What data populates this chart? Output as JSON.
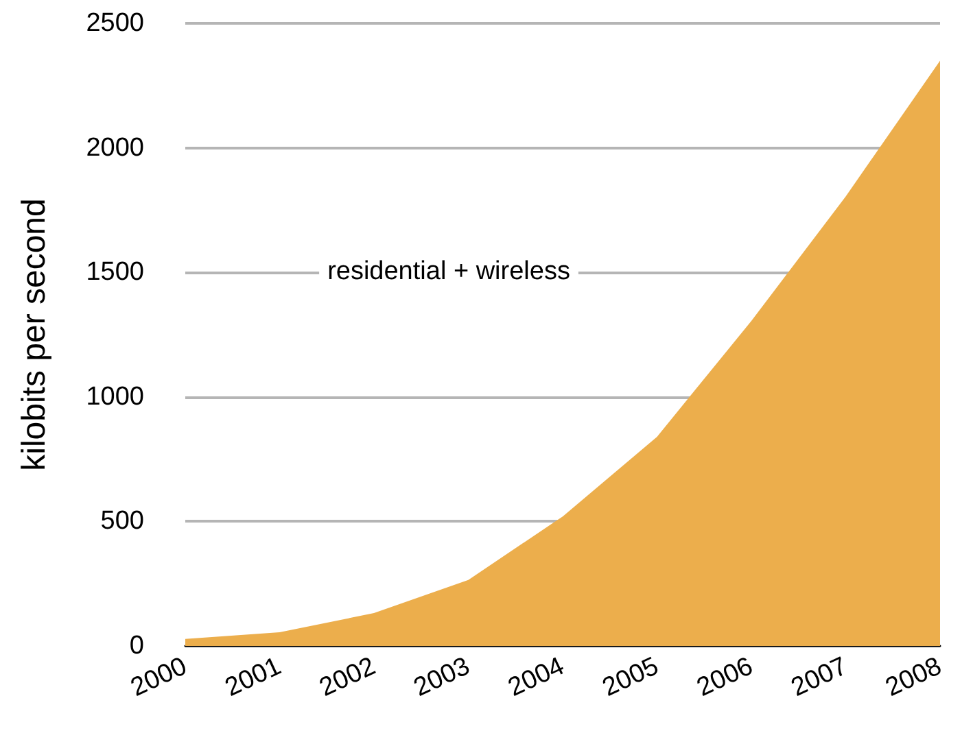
{
  "chart_data": {
    "type": "area",
    "ylabel": "kilobits per second",
    "categories": [
      "2000",
      "2001",
      "2002",
      "2003",
      "2004",
      "2005",
      "2006",
      "2007",
      "2008"
    ],
    "series": [
      {
        "color": "#ecae4c",
        "values": [
          28,
          55,
          132,
          265,
          520,
          840,
          1305,
          1805,
          2350
        ]
      }
    ],
    "annotations": [
      "residential + wireless"
    ],
    "ylim": [
      0,
      2500
    ],
    "yticks": [
      0,
      500,
      1000,
      1500,
      2000,
      2500
    ],
    "grid": "y"
  }
}
